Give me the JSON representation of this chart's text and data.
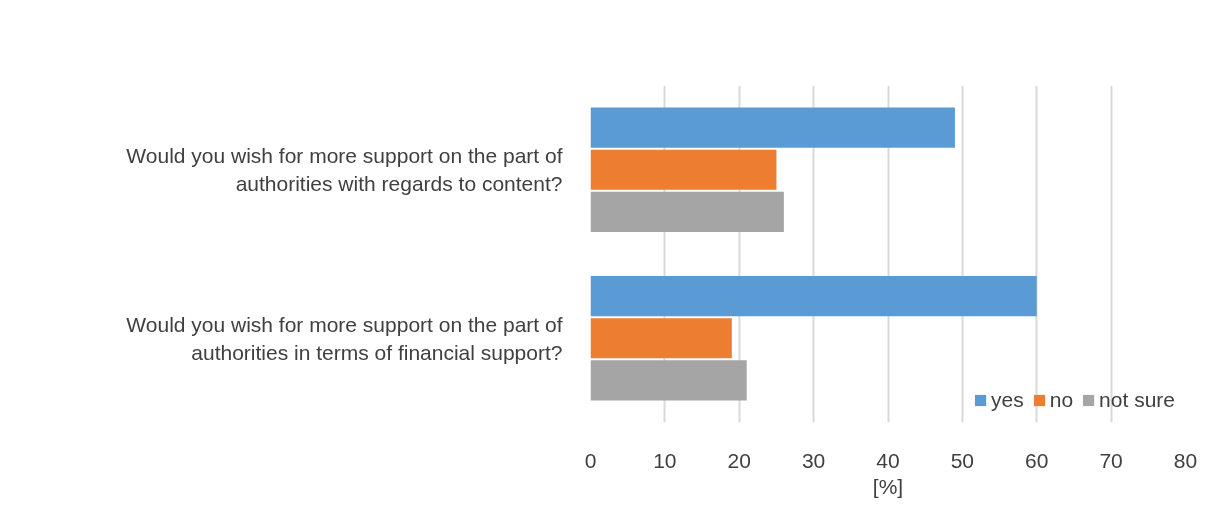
{
  "chart_data": {
    "type": "bar",
    "orientation": "horizontal",
    "xlabel": "[%]",
    "categories": [
      "Would you wish for more support on the part of authorities with regards to content?",
      "Would you wish for more support on the part of authorities in terms of financial support?"
    ],
    "series": [
      {
        "name": "yes",
        "color": "#5b9bd5",
        "values": [
          49,
          60
        ]
      },
      {
        "name": "no",
        "color": "#ed7d31",
        "values": [
          25,
          19
        ]
      },
      {
        "name": "not sure",
        "color": "#a5a5a5",
        "values": [
          26,
          21
        ]
      }
    ],
    "xlim": [
      0,
      80
    ],
    "xticks": [
      0,
      10,
      20,
      30,
      40,
      50,
      60,
      70,
      80
    ],
    "grid": "x",
    "legend": "bottom right"
  }
}
